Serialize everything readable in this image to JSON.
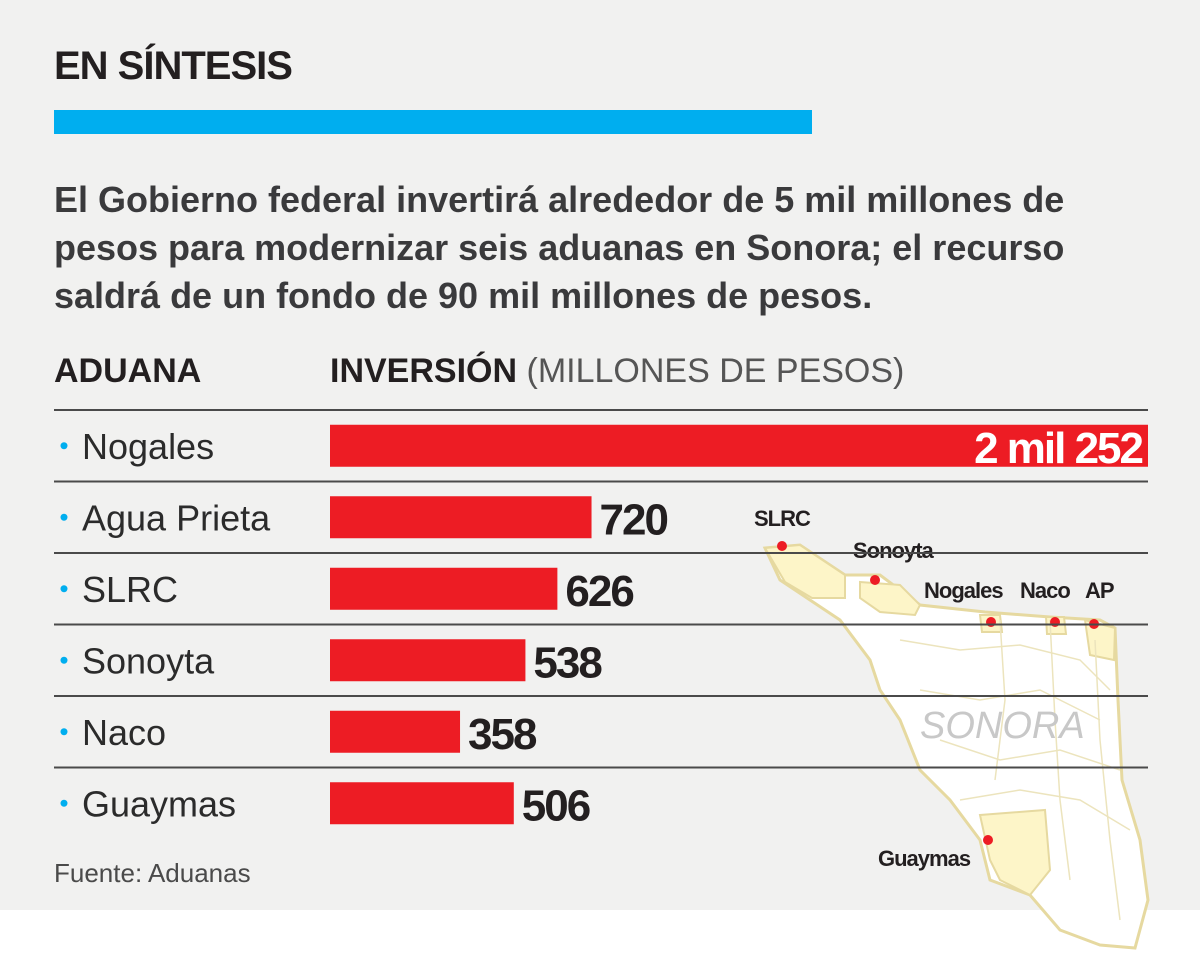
{
  "header": {
    "title": "EN SÍNTESIS",
    "intro": "El Gobierno federal invertirá alrededor de 5 mil millones de pesos para modernizar seis aduanas en Sonora; el recurso saldrá de un fondo de 90 mil millones de pesos."
  },
  "columns": {
    "left": "ADUANA",
    "right": "INVERSIÓN",
    "unit": "(MILLONES DE PESOS)"
  },
  "colors": {
    "accent": "#00aeef",
    "bar": "#ed1c24",
    "map_fill": "#fdf5c8",
    "map_border": "#e6d9a0"
  },
  "chart_data": {
    "type": "bar",
    "orientation": "horizontal",
    "categories": [
      "Nogales",
      "Agua Prieta",
      "SLRC",
      "Sonoyta",
      "Naco",
      "Guaymas"
    ],
    "values": [
      2252,
      720,
      626,
      538,
      358,
      506
    ],
    "value_labels": [
      "2 mil 252",
      "720",
      "626",
      "538",
      "358",
      "506"
    ],
    "xlim": [
      0,
      2252
    ]
  },
  "map": {
    "state_label": "SONORA",
    "points": [
      "SLRC",
      "Sonoyta",
      "Nogales",
      "Naco",
      "AP",
      "Guaymas"
    ]
  },
  "footer": {
    "source": "Fuente: Aduanas"
  }
}
